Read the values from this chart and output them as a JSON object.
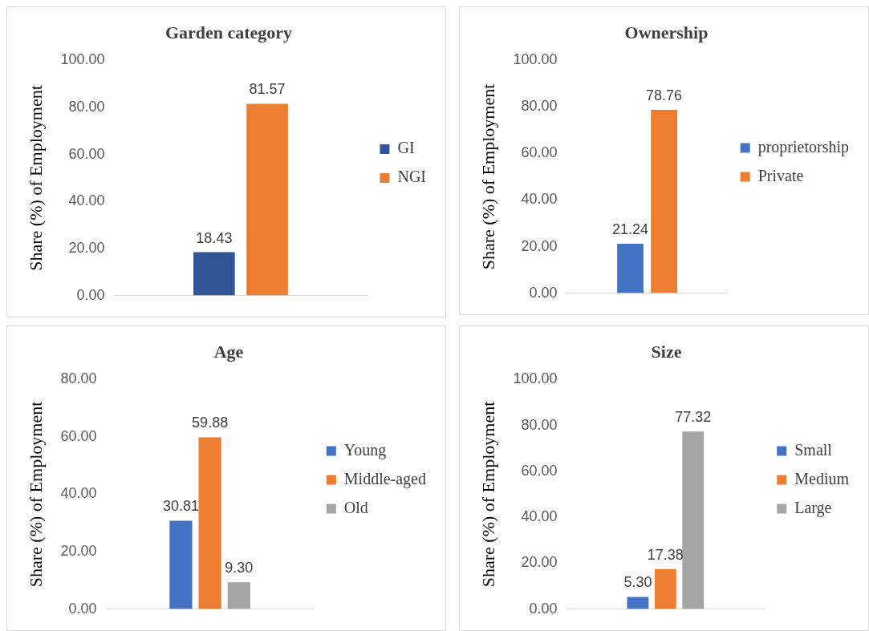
{
  "chart_data": [
    {
      "type": "bar",
      "title": "Garden category",
      "ylabel": "Share (%) of Employment",
      "categories": [
        null
      ],
      "series": [
        {
          "name": "GI",
          "color": "#2f5597",
          "values": [
            18.43
          ],
          "value_labels": [
            "18.43"
          ]
        },
        {
          "name": "NGI",
          "color": "#ed7d31",
          "values": [
            81.57
          ],
          "value_labels": [
            "81.57"
          ]
        }
      ],
      "ylim": [
        0,
        100
      ],
      "yticks": [
        {
          "value": 0,
          "label": "0.00"
        },
        {
          "value": 20,
          "label": "20.00"
        },
        {
          "value": 40,
          "label": "40.00"
        },
        {
          "value": 60,
          "label": "60.00"
        },
        {
          "value": 80,
          "label": "80.00"
        },
        {
          "value": 100,
          "label": "100.00"
        }
      ],
      "grid": false,
      "legend": "right"
    },
    {
      "type": "bar",
      "title": "Ownership",
      "ylabel": "Share (%) of Employment",
      "categories": [
        null
      ],
      "series": [
        {
          "name": "proprietorship",
          "color": "#4472c4",
          "values": [
            21.24
          ],
          "value_labels": [
            "21.24"
          ]
        },
        {
          "name": "Private",
          "color": "#ed7d31",
          "values": [
            78.76
          ],
          "value_labels": [
            "78.76"
          ]
        }
      ],
      "ylim": [
        0,
        100
      ],
      "yticks": [
        {
          "value": 0,
          "label": "0.00"
        },
        {
          "value": 20,
          "label": "20.00"
        },
        {
          "value": 40,
          "label": "40.00"
        },
        {
          "value": 60,
          "label": "60.00"
        },
        {
          "value": 80,
          "label": "80.00"
        },
        {
          "value": 100,
          "label": "100.00"
        }
      ],
      "grid": false,
      "legend": "right"
    },
    {
      "type": "bar",
      "title": "Age",
      "ylabel": "Share (%) of Employment",
      "categories": [
        null
      ],
      "series": [
        {
          "name": "Young",
          "color": "#4472c4",
          "values": [
            30.81
          ],
          "value_labels": [
            "30.81"
          ]
        },
        {
          "name": "Middle-aged",
          "color": "#ed7d31",
          "values": [
            59.88
          ],
          "value_labels": [
            "59.88"
          ]
        },
        {
          "name": "Old",
          "color": "#a5a5a5",
          "values": [
            9.3
          ],
          "value_labels": [
            "9.30"
          ]
        }
      ],
      "ylim": [
        0,
        80
      ],
      "yticks": [
        {
          "value": 0,
          "label": "0.00"
        },
        {
          "value": 20,
          "label": "20.00"
        },
        {
          "value": 40,
          "label": "40.00"
        },
        {
          "value": 60,
          "label": "60.00"
        },
        {
          "value": 80,
          "label": "80.00"
        }
      ],
      "grid": false,
      "legend": "right"
    },
    {
      "type": "bar",
      "title": "Size",
      "ylabel": "Share (%) of Employment",
      "categories": [
        null
      ],
      "series": [
        {
          "name": "Small",
          "color": "#4472c4",
          "values": [
            5.3
          ],
          "value_labels": [
            "5.30"
          ]
        },
        {
          "name": "Medium",
          "color": "#ed7d31",
          "values": [
            17.38
          ],
          "value_labels": [
            "17.38"
          ]
        },
        {
          "name": "Large",
          "color": "#a5a5a5",
          "values": [
            77.32
          ],
          "value_labels": [
            "77.32"
          ]
        }
      ],
      "ylim": [
        0,
        100
      ],
      "yticks": [
        {
          "value": 0,
          "label": "0.00"
        },
        {
          "value": 20,
          "label": "20.00"
        },
        {
          "value": 40,
          "label": "40.00"
        },
        {
          "value": 60,
          "label": "60.00"
        },
        {
          "value": 80,
          "label": "80.00"
        },
        {
          "value": 100,
          "label": "100.00"
        }
      ],
      "grid": false,
      "legend": "right"
    }
  ]
}
